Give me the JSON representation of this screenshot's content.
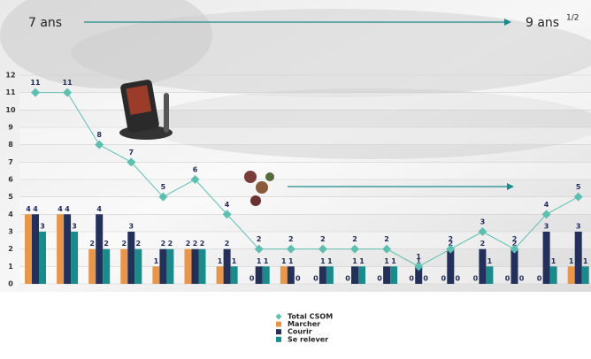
{
  "chart_data": {
    "type": "bar",
    "annotations": {
      "start": "7 ans",
      "end": "9 ans",
      "end_sup": "1/2"
    },
    "categories": [
      null,
      null,
      null,
      null,
      null,
      null,
      null,
      null,
      null,
      null,
      null,
      null,
      null,
      null,
      null,
      null,
      null,
      null
    ],
    "ylim": [
      0,
      12
    ],
    "yticks": [
      0,
      1,
      2,
      3,
      4,
      5,
      6,
      7,
      8,
      9,
      10,
      11,
      12
    ],
    "grid": true,
    "legend": "bottom",
    "series": [
      {
        "name": "Total CSOM",
        "kind": "line",
        "color": "#5cbfb0",
        "values": [
          11,
          11,
          8,
          7,
          5,
          6,
          4,
          2,
          2,
          2,
          2,
          2,
          1,
          2,
          3,
          2,
          4,
          5
        ]
      },
      {
        "name": "Marcher",
        "kind": "bar",
        "color": "#e8964a",
        "values": [
          4,
          4,
          2,
          2,
          1,
          2,
          1,
          0,
          1,
          0,
          0,
          0,
          0,
          0,
          0,
          0,
          0,
          1
        ]
      },
      {
        "name": "Courir",
        "kind": "bar",
        "color": "#23305a",
        "values": [
          4,
          4,
          4,
          3,
          2,
          2,
          2,
          1,
          1,
          1,
          1,
          1,
          1,
          2,
          2,
          2,
          3,
          3
        ]
      },
      {
        "name": "Se relever",
        "kind": "bar",
        "color": "#1a8a8a",
        "values": [
          3,
          3,
          2,
          2,
          2,
          2,
          1,
          1,
          0,
          1,
          1,
          1,
          0,
          0,
          1,
          0,
          1,
          1
        ]
      }
    ]
  }
}
